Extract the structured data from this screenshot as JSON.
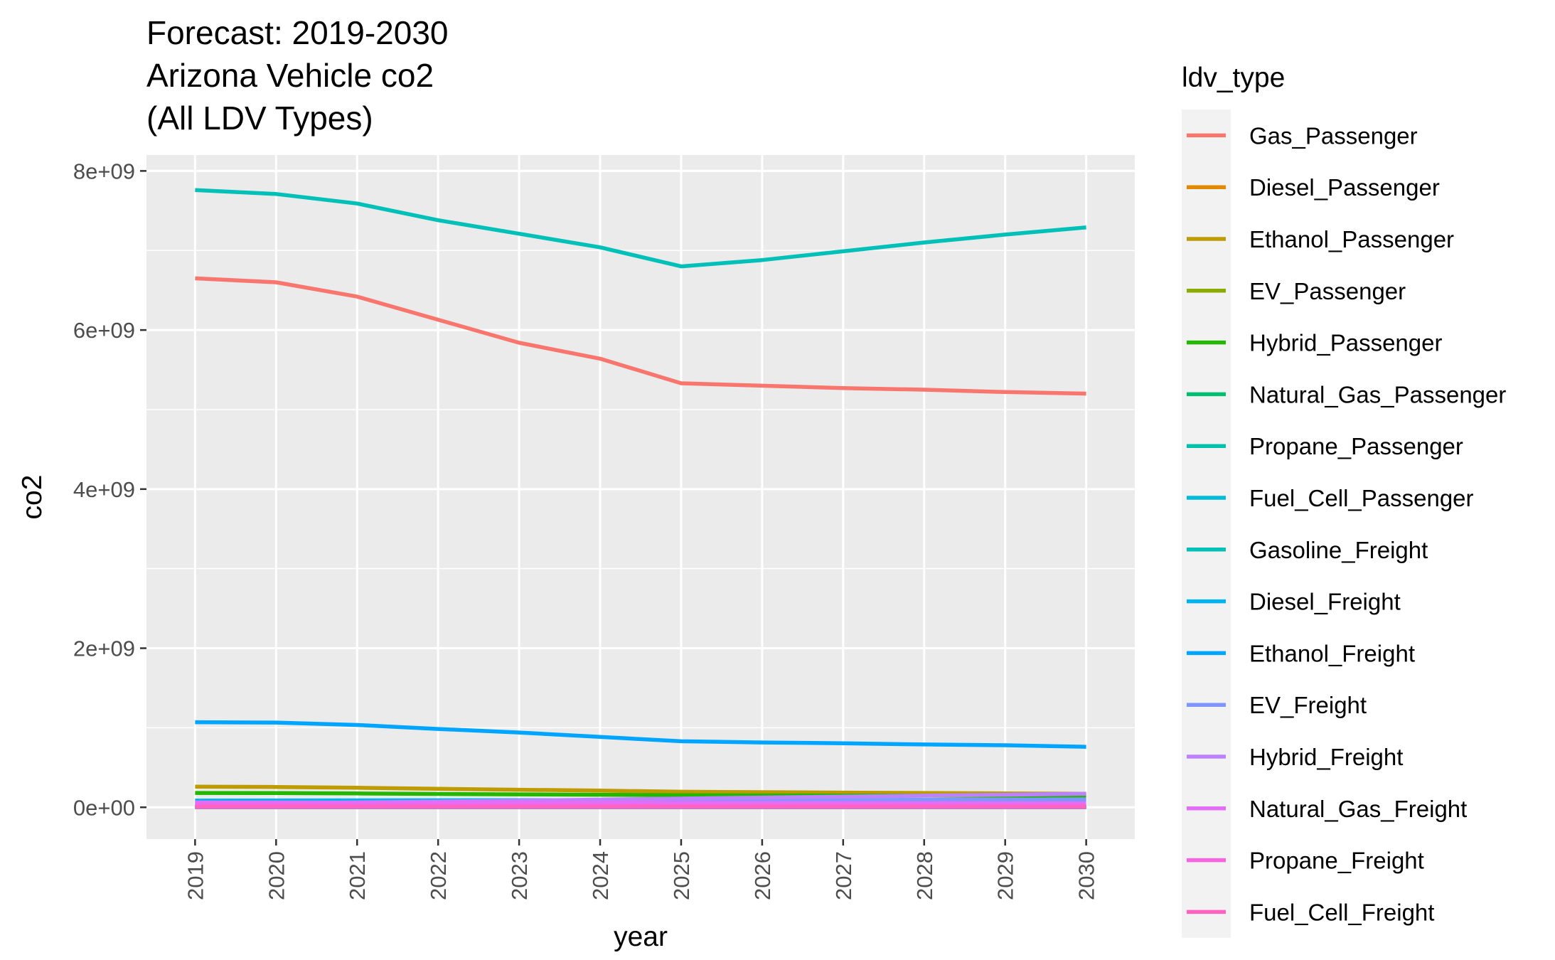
{
  "chart_data": {
    "type": "line",
    "title_lines": [
      "Forecast: 2019-2030",
      "Arizona Vehicle co2",
      "(All LDV Types)"
    ],
    "xlabel": "year",
    "ylabel": "co2",
    "x": [
      2019,
      2020,
      2021,
      2022,
      2023,
      2024,
      2025,
      2026,
      2027,
      2028,
      2029,
      2030
    ],
    "x_tick_labels": [
      "2019",
      "2020",
      "2021",
      "2022",
      "2023",
      "2024",
      "2025",
      "2026",
      "2027",
      "2028",
      "2029",
      "2030"
    ],
    "y_ticks": [
      0,
      2000000000,
      4000000000,
      6000000000,
      8000000000
    ],
    "y_tick_labels": [
      "0e+00",
      "2e+09",
      "4e+09",
      "6e+09",
      "8e+09"
    ],
    "ylim": [
      -400000000,
      8200000000
    ],
    "xlim": [
      2018.4,
      2030.6
    ],
    "grid": true,
    "panel_background": "#ebebeb",
    "grid_color": "#ffffff",
    "legend_title": "ldv_type",
    "legend_position": "right",
    "series": [
      {
        "name": "Gas_Passenger",
        "color": "#F8766D",
        "values": [
          6650000000,
          6600000000,
          6420000000,
          6130000000,
          5840000000,
          5640000000,
          5330000000,
          5300000000,
          5270000000,
          5250000000,
          5220000000,
          5200000000
        ]
      },
      {
        "name": "Diesel_Passenger",
        "color": "#E18A00",
        "values": [
          10000000,
          10000000,
          10000000,
          9000000,
          9000000,
          9000000,
          8000000,
          8000000,
          8000000,
          8000000,
          8000000,
          8000000
        ]
      },
      {
        "name": "Ethanol_Passenger",
        "color": "#BE9C00",
        "values": [
          260000000,
          255000000,
          245000000,
          232000000,
          220000000,
          210000000,
          195000000,
          190000000,
          185000000,
          180000000,
          175000000,
          170000000
        ]
      },
      {
        "name": "EV_Passenger",
        "color": "#8CAB00",
        "values": [
          5000000,
          6000000,
          7000000,
          8000000,
          9000000,
          10000000,
          11000000,
          12000000,
          13000000,
          14000000,
          15000000,
          16000000
        ]
      },
      {
        "name": "Hybrid_Passenger",
        "color": "#24B700",
        "values": [
          180000000,
          178000000,
          174000000,
          168000000,
          162000000,
          158000000,
          152000000,
          150000000,
          148000000,
          146000000,
          144000000,
          142000000
        ]
      },
      {
        "name": "Natural_Gas_Passenger",
        "color": "#00BE70",
        "values": [
          3000000,
          3000000,
          3000000,
          3000000,
          3000000,
          3000000,
          3000000,
          3000000,
          3000000,
          3000000,
          3000000,
          3000000
        ]
      },
      {
        "name": "Propane_Passenger",
        "color": "#00C1AB",
        "values": [
          2000000,
          2000000,
          2000000,
          2000000,
          2000000,
          2000000,
          2000000,
          2000000,
          2000000,
          2000000,
          2000000,
          2000000
        ]
      },
      {
        "name": "Fuel_Cell_Passenger",
        "color": "#00BBDA",
        "values": [
          1000000,
          1000000,
          1000000,
          1000000,
          1000000,
          1000000,
          1000000,
          1000000,
          1000000,
          1000000,
          1000000,
          1000000
        ]
      },
      {
        "name": "Gasoline_Freight",
        "color": "#00C0B8",
        "values": [
          7760000000,
          7710000000,
          7590000000,
          7380000000,
          7210000000,
          7040000000,
          6800000000,
          6880000000,
          6990000000,
          7100000000,
          7200000000,
          7290000000
        ]
      },
      {
        "name": "Diesel_Freight",
        "color": "#00B4F0",
        "values": [
          85000000,
          86000000,
          87000000,
          88000000,
          89000000,
          90000000,
          90000000,
          91000000,
          92000000,
          93000000,
          94000000,
          95000000
        ]
      },
      {
        "name": "Ethanol_Freight",
        "color": "#00A5FF",
        "values": [
          1070000000,
          1065000000,
          1035000000,
          985000000,
          940000000,
          885000000,
          830000000,
          815000000,
          805000000,
          790000000,
          780000000,
          760000000
        ]
      },
      {
        "name": "EV_Freight",
        "color": "#7F96FF",
        "values": [
          50000000,
          55000000,
          60000000,
          65000000,
          70000000,
          75000000,
          80000000,
          84000000,
          88000000,
          92000000,
          96000000,
          100000000
        ]
      },
      {
        "name": "Hybrid_Freight",
        "color": "#BC81FF",
        "values": [
          40000000,
          50000000,
          60000000,
          72000000,
          84000000,
          96000000,
          110000000,
          122000000,
          134000000,
          146000000,
          158000000,
          170000000
        ]
      },
      {
        "name": "Natural_Gas_Freight",
        "color": "#E26EF7",
        "values": [
          60000000,
          60000000,
          59000000,
          58000000,
          57000000,
          56000000,
          55000000,
          54000000,
          53000000,
          52000000,
          51000000,
          50000000
        ]
      },
      {
        "name": "Propane_Freight",
        "color": "#F863DF",
        "values": [
          20000000,
          20000000,
          20000000,
          19000000,
          19000000,
          19000000,
          18000000,
          18000000,
          18000000,
          17000000,
          17000000,
          17000000
        ]
      },
      {
        "name": "Fuel_Cell_Freight",
        "color": "#FF62BF",
        "values": [
          3000000,
          3000000,
          3000000,
          3000000,
          3000000,
          3000000,
          3000000,
          3000000,
          3000000,
          3000000,
          3000000,
          3000000
        ]
      }
    ]
  }
}
